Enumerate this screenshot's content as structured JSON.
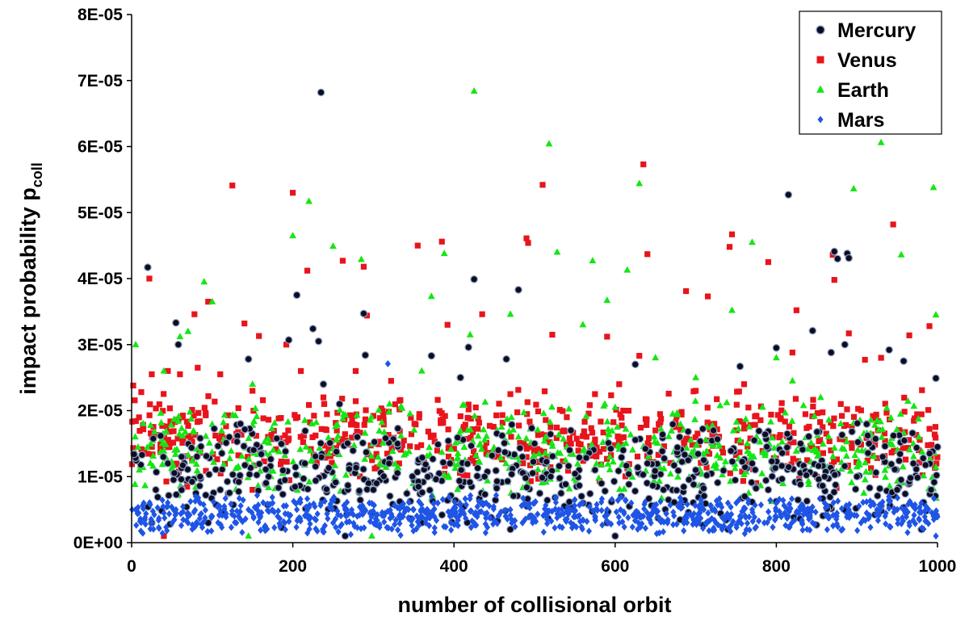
{
  "chart_data": {
    "type": "scatter",
    "title": "",
    "xlabel": "number of collisional orbit",
    "ylabel": "impact probability p",
    "ylabel_sub": "coll",
    "xlim": [
      0,
      1000
    ],
    "ylim": [
      0,
      8e-05
    ],
    "x_ticks": [
      0,
      200,
      400,
      600,
      800,
      1000
    ],
    "x_tick_labels": [
      "0",
      "200",
      "400",
      "600",
      "800",
      "1000"
    ],
    "y_ticks": [
      0,
      1e-05,
      2e-05,
      3e-05,
      4e-05,
      5e-05,
      6e-05,
      7e-05,
      8e-05
    ],
    "y_tick_labels": [
      "0E+00",
      "1E-05",
      "2E-05",
      "3E-05",
      "4E-05",
      "5E-05",
      "6E-05",
      "7E-05",
      "8E-05"
    ],
    "grid": false,
    "legend_position": "top-right",
    "series": [
      {
        "name": "Mercury",
        "marker": "circle",
        "color": "#0d0d1f",
        "edge_color": "#8fa3c8",
        "points": [
          [
            20,
            4.17e-05
          ],
          [
            25,
            3e-06
          ],
          [
            30,
            8e-06
          ],
          [
            45,
            1.2e-05
          ],
          [
            55,
            3.33e-05
          ],
          [
            58,
            3e-05
          ],
          [
            62,
            1.3e-05
          ],
          [
            85,
            1e-05
          ],
          [
            95,
            3e-06
          ],
          [
            110,
            8e-06
          ],
          [
            135,
            1.8e-05
          ],
          [
            145,
            2.78e-05
          ],
          [
            170,
            1e-05
          ],
          [
            195,
            3.07e-05
          ],
          [
            205,
            3.75e-05
          ],
          [
            215,
            1.2e-05
          ],
          [
            225,
            3.24e-05
          ],
          [
            232,
            3.05e-05
          ],
          [
            235,
            6.82e-05
          ],
          [
            238,
            2.4e-05
          ],
          [
            258,
            2.1e-05
          ],
          [
            265,
            1e-06
          ],
          [
            280,
            1.6e-05
          ],
          [
            288,
            3.47e-05
          ],
          [
            290,
            2.84e-05
          ],
          [
            300,
            8e-06
          ],
          [
            330,
            1.5e-05
          ],
          [
            360,
            3e-06
          ],
          [
            372,
            2.83e-05
          ],
          [
            395,
            1.2e-05
          ],
          [
            408,
            2.5e-05
          ],
          [
            418,
            2.96e-05
          ],
          [
            425,
            3.99e-05
          ],
          [
            438,
            1e-05
          ],
          [
            455,
            1.4e-05
          ],
          [
            465,
            2.78e-05
          ],
          [
            470,
            2e-06
          ],
          [
            480,
            3.83e-05
          ],
          [
            485,
            1.3e-05
          ],
          [
            500,
            1.5e-05
          ],
          [
            520,
            1e-05
          ],
          [
            545,
            1.7e-05
          ],
          [
            575,
            1.1e-05
          ],
          [
            590,
            3e-06
          ],
          [
            600,
            1e-06
          ],
          [
            610,
            1.4e-05
          ],
          [
            625,
            2.7e-05
          ],
          [
            640,
            1.2e-05
          ],
          [
            660,
            8e-06
          ],
          [
            680,
            1.6e-05
          ],
          [
            700,
            1.1e-05
          ],
          [
            722,
            1.7e-05
          ],
          [
            740,
            2e-06
          ],
          [
            755,
            2.67e-05
          ],
          [
            770,
            1.2e-05
          ],
          [
            790,
            8e-06
          ],
          [
            800,
            2.95e-05
          ],
          [
            815,
            5.27e-05
          ],
          [
            830,
            1.5e-05
          ],
          [
            845,
            3.21e-05
          ],
          [
            860,
            1e-05
          ],
          [
            868,
            2.88e-05
          ],
          [
            872,
            4.41e-05
          ],
          [
            876,
            4.3e-05
          ],
          [
            885,
            3e-05
          ],
          [
            888,
            4.38e-05
          ],
          [
            890,
            4.31e-05
          ],
          [
            900,
            1e-05
          ],
          [
            915,
            1.5e-05
          ],
          [
            932,
            1.3e-05
          ],
          [
            940,
            2.92e-05
          ],
          [
            950,
            8e-06
          ],
          [
            958,
            2.75e-05
          ],
          [
            970,
            1.2e-05
          ],
          [
            980,
            2e-06
          ],
          [
            992,
            8e-06
          ],
          [
            998,
            2.49e-05
          ],
          [
            1000,
            1.45e-05
          ]
        ]
      },
      {
        "name": "Venus",
        "marker": "square",
        "color": "#e8141c",
        "edge_color": "#e8141c",
        "points": [
          [
            2,
            2.38e-05
          ],
          [
            12,
            2.28e-05
          ],
          [
            22,
            4e-05
          ],
          [
            25,
            2.55e-05
          ],
          [
            45,
            2.6e-05
          ],
          [
            60,
            2.55e-05
          ],
          [
            78,
            3.46e-05
          ],
          [
            82,
            2.65e-05
          ],
          [
            95,
            3.65e-05
          ],
          [
            110,
            2.55e-05
          ],
          [
            125,
            5.41e-05
          ],
          [
            140,
            3.32e-05
          ],
          [
            150,
            2.3e-05
          ],
          [
            158,
            3.13e-05
          ],
          [
            192,
            3e-05
          ],
          [
            200,
            5.3e-05
          ],
          [
            210,
            2.6e-05
          ],
          [
            218,
            4.12e-05
          ],
          [
            238,
            2.2e-05
          ],
          [
            262,
            4.27e-05
          ],
          [
            278,
            2.6e-05
          ],
          [
            288,
            4.18e-05
          ],
          [
            292,
            3.44e-05
          ],
          [
            322,
            2.45e-05
          ],
          [
            355,
            4.5e-05
          ],
          [
            385,
            4.56e-05
          ],
          [
            392,
            3.3e-05
          ],
          [
            430,
            1.88e-05
          ],
          [
            435,
            3.46e-05
          ],
          [
            470,
            2.25e-05
          ],
          [
            490,
            4.61e-05
          ],
          [
            492,
            4.54e-05
          ],
          [
            510,
            5.42e-05
          ],
          [
            522,
            3.15e-05
          ],
          [
            540,
            1.9e-05
          ],
          [
            575,
            2.25e-05
          ],
          [
            590,
            3.12e-05
          ],
          [
            605,
            2.4e-05
          ],
          [
            630,
            2.83e-05
          ],
          [
            635,
            5.73e-05
          ],
          [
            640,
            4.37e-05
          ],
          [
            688,
            3.81e-05
          ],
          [
            700,
            2.3e-05
          ],
          [
            715,
            3.73e-05
          ],
          [
            742,
            4.48e-05
          ],
          [
            745,
            4.67e-05
          ],
          [
            790,
            4.25e-05
          ],
          [
            820,
            2.88e-05
          ],
          [
            825,
            3.52e-05
          ],
          [
            862,
            1.65e-05
          ],
          [
            870,
            4.36e-05
          ],
          [
            872,
            3.98e-05
          ],
          [
            890,
            3.17e-05
          ],
          [
            910,
            2.77e-05
          ],
          [
            930,
            2.8e-05
          ],
          [
            945,
            4.82e-05
          ],
          [
            965,
            3.14e-05
          ],
          [
            990,
            3.28e-05
          ],
          [
            40,
            1e-06
          ],
          [
            150,
            8e-06
          ],
          [
            300,
            1.92e-05
          ],
          [
            450,
            1.3e-05
          ],
          [
            520,
            1.75e-05
          ],
          [
            650,
            1.7e-05
          ],
          [
            760,
            2.4e-05
          ],
          [
            880,
            2.1e-05
          ]
        ]
      },
      {
        "name": "Earth",
        "marker": "triangle",
        "color": "#14e614",
        "edge_color": "#14e614",
        "points": [
          [
            5,
            3e-05
          ],
          [
            40,
            2.6e-05
          ],
          [
            60,
            3.12e-05
          ],
          [
            70,
            3.2e-05
          ],
          [
            90,
            3.95e-05
          ],
          [
            100,
            3.65e-05
          ],
          [
            145,
            1e-06
          ],
          [
            150,
            2.4e-05
          ],
          [
            200,
            4.65e-05
          ],
          [
            220,
            5.17e-05
          ],
          [
            250,
            4.49e-05
          ],
          [
            285,
            4.29e-05
          ],
          [
            298,
            1e-06
          ],
          [
            360,
            2.6e-05
          ],
          [
            372,
            3.73e-05
          ],
          [
            388,
            4.38e-05
          ],
          [
            420,
            3.15e-05
          ],
          [
            425,
            6.84e-05
          ],
          [
            470,
            3.46e-05
          ],
          [
            518,
            6.04e-05
          ],
          [
            528,
            4.4e-05
          ],
          [
            560,
            3.3e-05
          ],
          [
            572,
            4.27e-05
          ],
          [
            590,
            3.67e-05
          ],
          [
            600,
            2.05e-05
          ],
          [
            615,
            4.13e-05
          ],
          [
            630,
            5.44e-05
          ],
          [
            650,
            2.8e-05
          ],
          [
            700,
            2.5e-05
          ],
          [
            745,
            3.52e-05
          ],
          [
            770,
            4.55e-05
          ],
          [
            800,
            2.8e-05
          ],
          [
            855,
            2.2e-05
          ],
          [
            880,
            1.8e-05
          ],
          [
            896,
            5.36e-05
          ],
          [
            930,
            6.06e-05
          ],
          [
            955,
            4.36e-05
          ],
          [
            970,
            1.5e-05
          ],
          [
            995,
            5.38e-05
          ],
          [
            998,
            3.45e-05
          ],
          [
            320,
            2.1e-05
          ],
          [
            480,
            1.6e-05
          ],
          [
            540,
            1.45e-05
          ],
          [
            680,
            1.25e-05
          ],
          [
            820,
            2.45e-05
          ],
          [
            900,
            1.15e-05
          ]
        ]
      },
      {
        "name": "Mars",
        "marker": "diamond",
        "color": "#1f55e6",
        "edge_color": "#1f55e6",
        "points": [
          [
            5,
            5e-06
          ],
          [
            15,
            6e-06
          ],
          [
            25,
            3e-06
          ],
          [
            40,
            4.5e-06
          ],
          [
            55,
            5e-06
          ],
          [
            70,
            3e-06
          ],
          [
            85,
            6e-06
          ],
          [
            100,
            4e-06
          ],
          [
            115,
            5.5e-06
          ],
          [
            130,
            3e-06
          ],
          [
            145,
            5e-06
          ],
          [
            160,
            4e-06
          ],
          [
            175,
            6e-06
          ],
          [
            190,
            3e-06
          ],
          [
            205,
            5e-06
          ],
          [
            220,
            4e-06
          ],
          [
            235,
            6e-06
          ],
          [
            250,
            3e-06
          ],
          [
            265,
            5e-06
          ],
          [
            280,
            4e-06
          ],
          [
            295,
            6e-06
          ],
          [
            318,
            2.71e-05
          ],
          [
            335,
            4e-06
          ],
          [
            350,
            5e-06
          ],
          [
            365,
            3e-06
          ],
          [
            380,
            6e-06
          ],
          [
            395,
            4e-06
          ],
          [
            410,
            5e-06
          ],
          [
            425,
            3e-06
          ],
          [
            440,
            6e-06
          ],
          [
            455,
            4e-06
          ],
          [
            470,
            5e-06
          ],
          [
            485,
            3e-06
          ],
          [
            500,
            6e-06
          ],
          [
            515,
            4e-06
          ],
          [
            530,
            5e-06
          ],
          [
            545,
            3e-06
          ],
          [
            560,
            6e-06
          ],
          [
            575,
            4e-06
          ],
          [
            590,
            5e-06
          ],
          [
            605,
            3e-06
          ],
          [
            620,
            6e-06
          ],
          [
            635,
            4e-06
          ],
          [
            650,
            5e-06
          ],
          [
            665,
            3e-06
          ],
          [
            680,
            6e-06
          ],
          [
            695,
            4e-06
          ],
          [
            710,
            5e-06
          ],
          [
            725,
            3e-06
          ],
          [
            740,
            6e-06
          ],
          [
            755,
            4e-06
          ],
          [
            770,
            5e-06
          ],
          [
            785,
            3e-06
          ],
          [
            800,
            6e-06
          ],
          [
            815,
            4e-06
          ],
          [
            830,
            5e-06
          ],
          [
            845,
            3e-06
          ],
          [
            860,
            6e-06
          ],
          [
            875,
            4e-06
          ],
          [
            890,
            5e-06
          ],
          [
            905,
            3e-06
          ],
          [
            920,
            6e-06
          ],
          [
            935,
            4e-06
          ],
          [
            950,
            5e-06
          ],
          [
            965,
            3e-06
          ],
          [
            980,
            6e-06
          ],
          [
            995,
            4e-06
          ],
          [
            998,
            1e-06
          ]
        ]
      }
    ],
    "dense_bands": [
      {
        "series": "Venus",
        "y_min": 8e-06,
        "y_max": 2.35e-05,
        "count": 620,
        "seed": 11
      },
      {
        "series": "Earth",
        "y_min": 6e-06,
        "y_max": 2.2e-05,
        "count": 560,
        "seed": 23
      },
      {
        "series": "Mercury",
        "y_min": 2e-06,
        "y_max": 1.9e-05,
        "count": 560,
        "seed": 37
      },
      {
        "series": "Mars",
        "y_min": 1e-06,
        "y_max": 7.5e-06,
        "count": 820,
        "seed": 53
      }
    ]
  }
}
